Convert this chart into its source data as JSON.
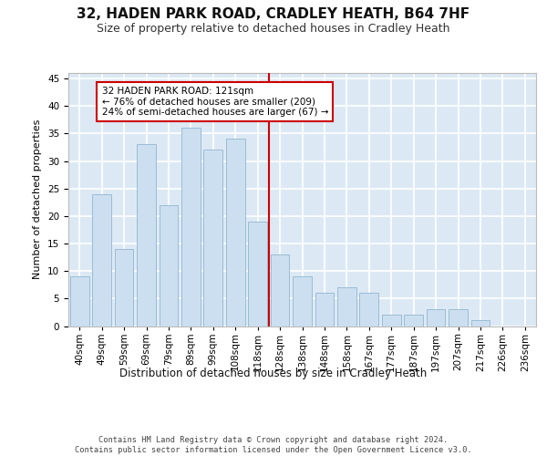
{
  "title": "32, HADEN PARK ROAD, CRADLEY HEATH, B64 7HF",
  "subtitle": "Size of property relative to detached houses in Cradley Heath",
  "xlabel": "Distribution of detached houses by size in Cradley Heath",
  "ylabel": "Number of detached properties",
  "categories": [
    "40sqm",
    "49sqm",
    "59sqm",
    "69sqm",
    "79sqm",
    "89sqm",
    "99sqm",
    "108sqm",
    "118sqm",
    "128sqm",
    "138sqm",
    "148sqm",
    "158sqm",
    "167sqm",
    "177sqm",
    "187sqm",
    "197sqm",
    "207sqm",
    "217sqm",
    "226sqm",
    "236sqm"
  ],
  "values": [
    9,
    24,
    14,
    33,
    22,
    36,
    32,
    34,
    19,
    13,
    9,
    6,
    7,
    6,
    2,
    2,
    3,
    3,
    1,
    0,
    0
  ],
  "bar_color": "#ccdff0",
  "bar_edge_color": "#9abcd4",
  "background_color": "#dce9f5",
  "grid_color": "#ffffff",
  "property_line_color": "#cc0000",
  "annotation_text": "32 HADEN PARK ROAD: 121sqm\n← 76% of detached houses are smaller (209)\n24% of semi-detached houses are larger (67) →",
  "annotation_box_facecolor": "#ffffff",
  "annotation_box_edgecolor": "#cc0000",
  "ylim": [
    0,
    46
  ],
  "yticks": [
    0,
    5,
    10,
    15,
    20,
    25,
    30,
    35,
    40,
    45
  ],
  "footer_line1": "Contains HM Land Registry data © Crown copyright and database right 2024.",
  "footer_line2": "Contains public sector information licensed under the Open Government Licence v3.0.",
  "property_sqm": 121,
  "property_bin_index": 8,
  "title_fontsize": 11,
  "subtitle_fontsize": 9,
  "ylabel_fontsize": 8,
  "xlabel_fontsize": 8.5,
  "tick_fontsize": 7.5,
  "footer_fontsize": 6.2,
  "annotation_fontsize": 7.5
}
